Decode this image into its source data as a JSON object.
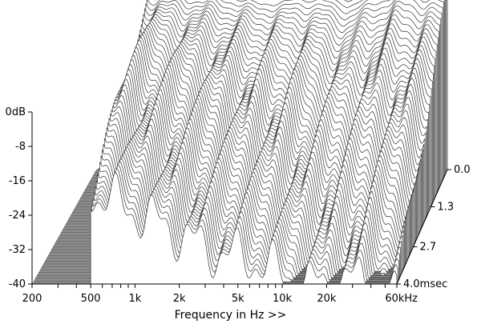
{
  "chart_data": {
    "type": "waterfall",
    "xlabel": "Frequency in Hz >>",
    "x_scale": "log",
    "xlim": [
      200,
      60000
    ],
    "x_ticks": [
      200,
      500,
      1000,
      2000,
      5000,
      10000,
      20000,
      60000
    ],
    "x_tick_labels": [
      "200",
      "500",
      "1k",
      "2k",
      "5k",
      "10k",
      "20k",
      "60kHz"
    ],
    "ylim": [
      -40,
      0
    ],
    "y_ticks": [
      0,
      -8,
      -16,
      -24,
      -32,
      -40
    ],
    "y_tick_labels": [
      "0dB",
      "-8",
      "-16",
      "-24",
      "-32",
      "-40"
    ],
    "z_ticks": [
      0.0,
      1.3,
      2.7,
      4.0
    ],
    "z_tick_labels": [
      "0.0",
      "1.3",
      "2.7",
      "4.0msec"
    ],
    "slice_count": 55,
    "floor_color": "#8c8c8c",
    "line_color": "#333333",
    "initial_response": [
      {
        "freq": 500,
        "db": 4.5
      },
      {
        "freq": 1000,
        "db": 3.5
      },
      {
        "freq": 2000,
        "db": 2.0
      },
      {
        "freq": 3000,
        "db": 0.5
      },
      {
        "freq": 5000,
        "db": 1.5
      },
      {
        "freq": 8000,
        "db": 2.0
      },
      {
        "freq": 12000,
        "db": -1.0
      },
      {
        "freq": 20000,
        "db": 2.5
      },
      {
        "freq": 35000,
        "db": 6.5
      },
      {
        "freq": 60000,
        "db": 4.0
      }
    ]
  }
}
